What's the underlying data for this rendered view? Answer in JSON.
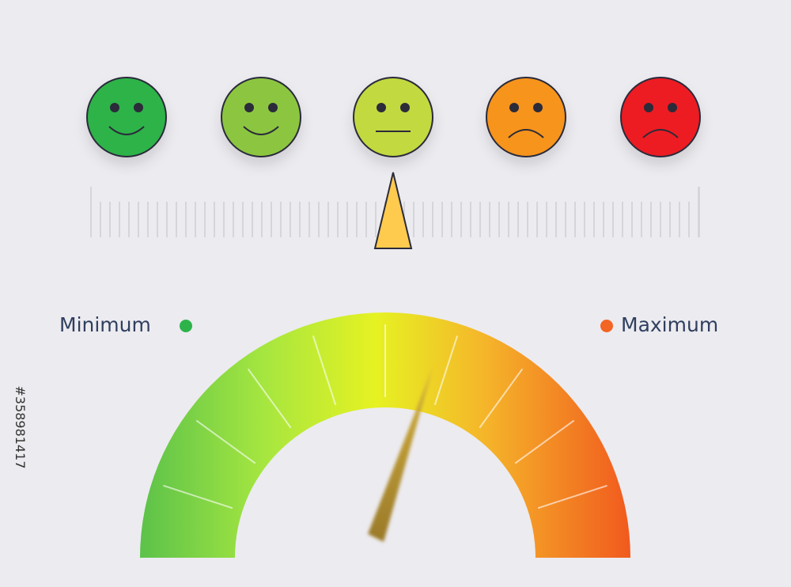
{
  "labels": {
    "minimum": "Minimum",
    "maximum": "Maximum"
  },
  "stock_id": "#358981417"
}
